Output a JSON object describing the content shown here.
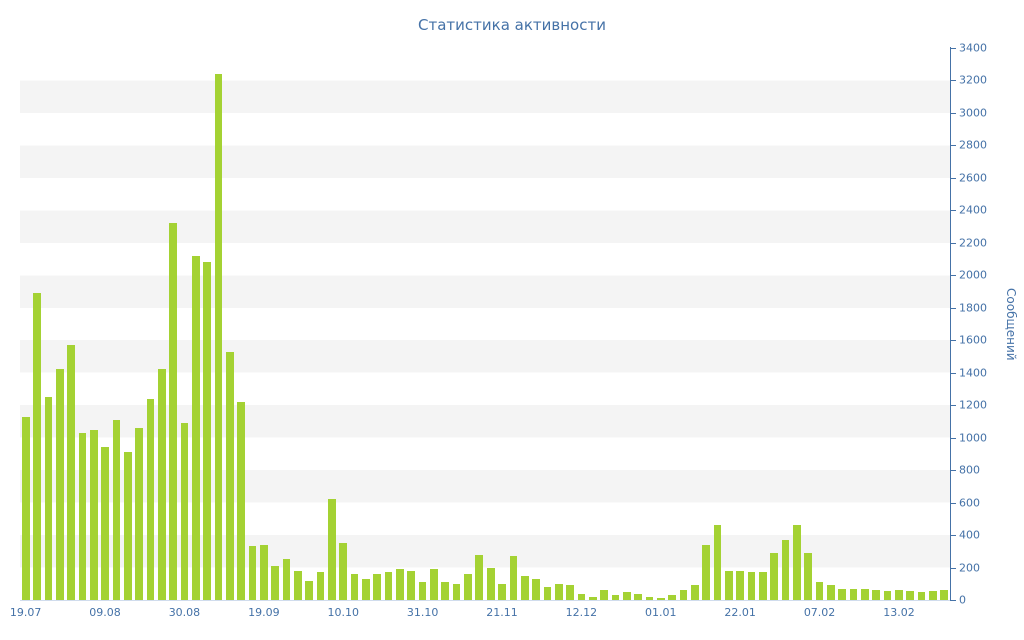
{
  "title": "Статистика активности",
  "chart_data": {
    "type": "bar",
    "title": "Статистика активности",
    "xlabel": "",
    "ylabel": "Сообщений",
    "ylim": [
      0,
      3400
    ],
    "y_tick_step": 200,
    "y_ticks": [
      0,
      200,
      400,
      600,
      800,
      1000,
      1200,
      1400,
      1600,
      1800,
      2000,
      2200,
      2400,
      2600,
      2800,
      3000,
      3200,
      3400
    ],
    "x_tick_labels": [
      "19.07",
      "09.08",
      "30.08",
      "19.09",
      "10.10",
      "31.10",
      "21.11",
      "12.12",
      "01.01",
      "22.01",
      "07.02",
      "13.02"
    ],
    "x_tick_every": 7,
    "values": [
      1130,
      1890,
      1250,
      1420,
      1570,
      1030,
      1050,
      940,
      1110,
      910,
      1060,
      1240,
      1420,
      2320,
      1090,
      2120,
      2080,
      3240,
      1530,
      1220,
      330,
      340,
      210,
      250,
      180,
      120,
      170,
      620,
      350,
      160,
      130,
      160,
      170,
      190,
      180,
      110,
      190,
      110,
      100,
      160,
      280,
      200,
      100,
      270,
      150,
      130,
      80,
      100,
      90,
      40,
      20,
      60,
      30,
      50,
      40,
      20,
      10,
      30,
      60,
      90,
      340,
      460,
      180,
      180,
      170,
      175,
      290,
      370,
      460,
      290,
      110,
      90,
      70,
      70,
      65,
      60,
      55,
      60,
      55,
      50,
      55,
      60
    ],
    "legend": "none",
    "grid": "alternating-horizontal-bands",
    "y_axis_position": "right",
    "bar_color": "#a4d233",
    "stripe_color": "#f4f4f4",
    "axis_color": "#4572a7",
    "text_color": "#4572a7",
    "background_color": "#ffffff"
  }
}
